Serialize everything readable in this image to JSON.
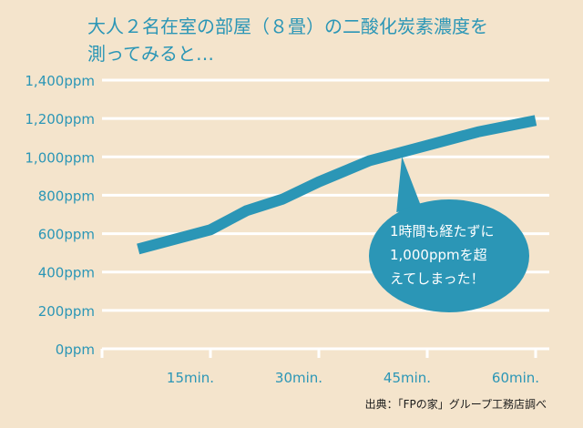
{
  "title_lines": [
    "大人２名在室の部屋（８畳）の二酸化炭素濃度を",
    "測ってみると…"
  ],
  "source": "出典：「FPの家」グループ工務店調べ",
  "colors": {
    "background": "#f4e4cc",
    "accent": "#2b96b6",
    "grid": "#ffffff",
    "axis_text": "#2b96b6"
  },
  "chart_data": {
    "type": "line",
    "title": "大人２名在室の部屋（８畳）の二酸化炭素濃度を測ってみると…",
    "xlabel": "",
    "ylabel": "",
    "x_ticks": [
      "15min.",
      "30min.",
      "45min.",
      "60min."
    ],
    "y_ticks": [
      "0ppm",
      "200ppm",
      "400ppm",
      "600ppm",
      "800ppm",
      "1,000ppm",
      "1,200ppm",
      "1,400ppm"
    ],
    "xlim": [
      0,
      60
    ],
    "ylim": [
      0,
      1400
    ],
    "grid": true,
    "series": [
      {
        "x": [
          5,
          15,
          20,
          25,
          30,
          37,
          45,
          52,
          60
        ],
        "y": [
          520,
          620,
          720,
          780,
          870,
          980,
          1060,
          1130,
          1190
        ]
      }
    ],
    "annotation": {
      "lines": [
        "1時間も経たずに",
        "1,000ppmを超",
        "えてしまった！"
      ],
      "target_x": 42,
      "target_y": 1040
    }
  }
}
